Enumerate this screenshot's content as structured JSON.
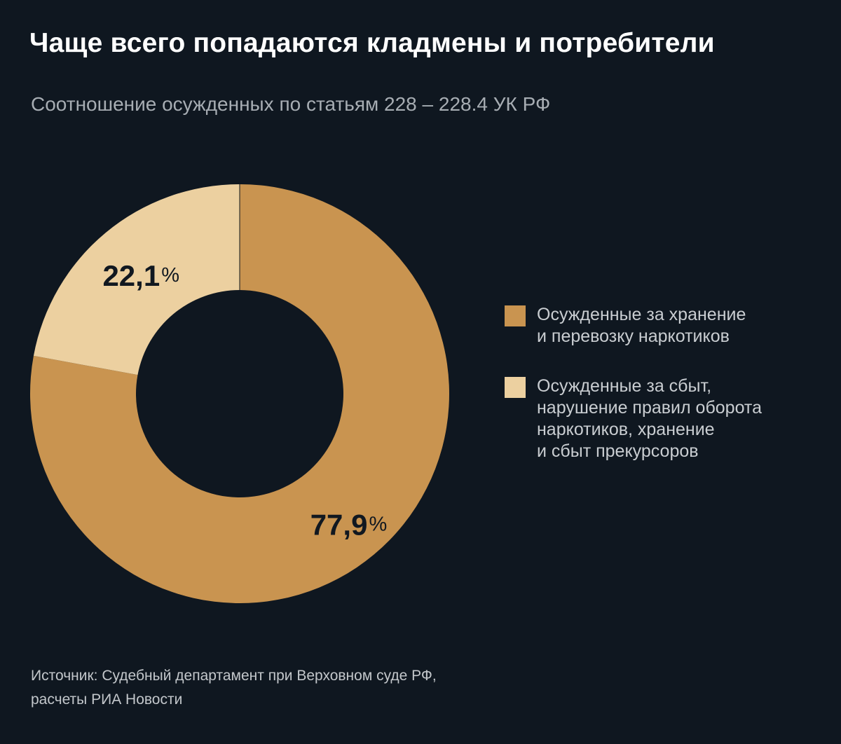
{
  "header": {
    "title": "Чаще всего попадаются кладмены и потребители",
    "subtitle": "Соотношение осужденных по статьям 228 – 228.4 УК РФ"
  },
  "chart_data": {
    "type": "pie",
    "donut": true,
    "series": [
      {
        "name": "Осужденные за хранение\nи перевозку наркотиков",
        "value": 77.9,
        "label_number": "77,9",
        "label_unit": "%",
        "color": "#c99450"
      },
      {
        "name": "Осужденные за сбыт,\nнарушение правил оборота\nнаркотиков, хранение\nи сбыт прекурсоров",
        "value": 22.1,
        "label_number": "22,1",
        "label_unit": "%",
        "color": "#ecd0a0"
      }
    ],
    "legend_position": "right"
  },
  "footer": {
    "source": "Источник: Судебный департамент при Верховном суде РФ,\nрасчеты РИА Новости"
  },
  "colors": {
    "background": "#0f1720",
    "label_text": "#111820"
  }
}
